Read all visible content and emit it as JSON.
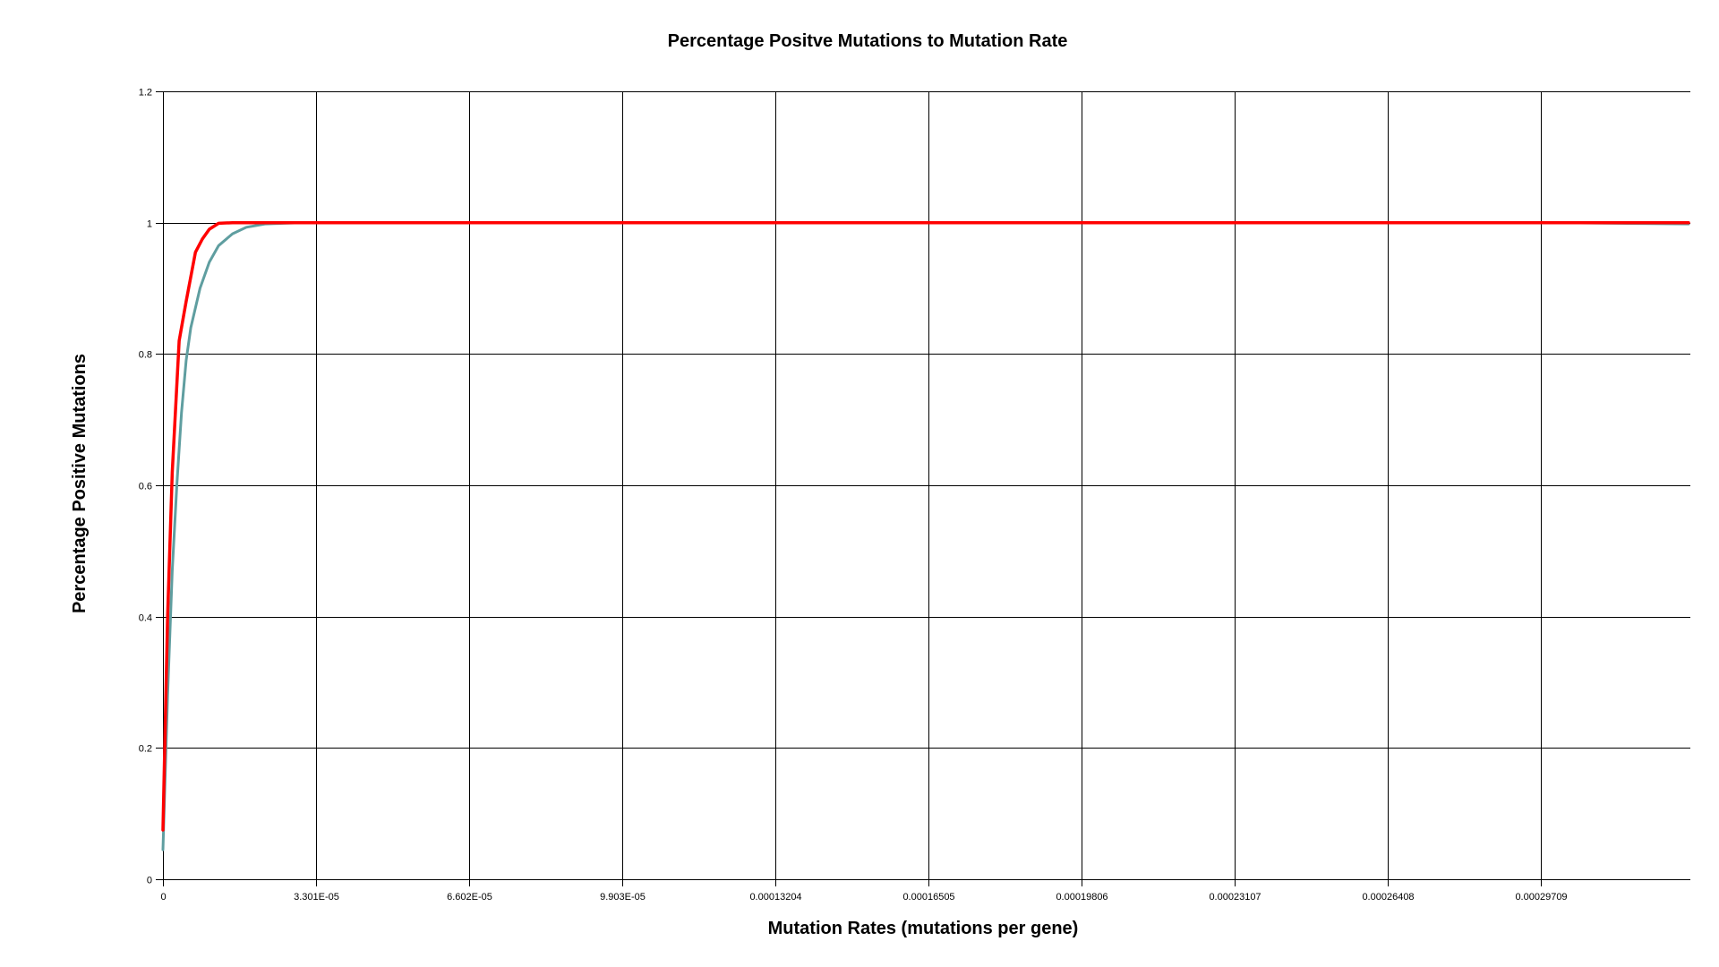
{
  "chart_data": {
    "type": "line",
    "title": "Percentage Positve Mutations to Mutation Rate",
    "xlabel": "Mutation Rates (mutations per gene)",
    "ylabel": "Percentage Positive Mutations",
    "xlim": [
      0,
      0.00033
    ],
    "ylim": [
      0,
      1.2
    ],
    "x_ticks": [
      0,
      3.301e-05,
      6.602e-05,
      9.903e-05,
      0.00013204,
      0.00016505,
      0.00019806,
      0.00023107,
      0.00026408,
      0.00029709
    ],
    "x_tick_labels": [
      "0",
      "3.301E-05",
      "6.602E-05",
      "9.903E-05",
      "0.00013204",
      "0.00016505",
      "0.00019806",
      "0.00023107",
      "0.00026408",
      "0.00029709"
    ],
    "y_ticks": [
      0,
      0.2,
      0.4,
      0.6,
      0.8,
      1,
      1.2
    ],
    "y_tick_labels": [
      "0",
      "0.2",
      "0.4",
      "0.6",
      "0.8",
      "1",
      "1.2"
    ],
    "grid": true,
    "legend": "none",
    "series": [
      {
        "color": "#ff0000",
        "x": [
          0,
          1e-06,
          2e-06,
          3.5e-06,
          5e-06,
          7e-06,
          8.5e-06,
          1e-05,
          1.2e-05,
          1.5e-05,
          2e-05,
          5e-05,
          0.0001,
          0.00015,
          0.0002,
          0.00025,
          0.0003,
          0.00033
        ],
        "y": [
          0.075,
          0.4,
          0.62,
          0.82,
          0.88,
          0.955,
          0.975,
          0.99,
          0.999,
          1.0,
          1.0,
          1.0,
          1.0,
          1.0,
          1.0,
          1.0,
          1.0,
          1.0
        ]
      },
      {
        "color": "#5f9ea0",
        "x": [
          0,
          1e-06,
          2e-06,
          3e-06,
          4e-06,
          5e-06,
          6e-06,
          8e-06,
          1e-05,
          1.2e-05,
          1.5e-05,
          1.8e-05,
          2.2e-05,
          2.6e-05,
          3e-05,
          4e-05,
          0.0001,
          0.0002,
          0.0003,
          0.00033
        ],
        "y": [
          0.045,
          0.28,
          0.47,
          0.6,
          0.71,
          0.79,
          0.84,
          0.9,
          0.94,
          0.965,
          0.983,
          0.993,
          0.998,
          0.999,
          1.0,
          1.0,
          1.0,
          1.0,
          1.0,
          0.998
        ]
      }
    ]
  }
}
